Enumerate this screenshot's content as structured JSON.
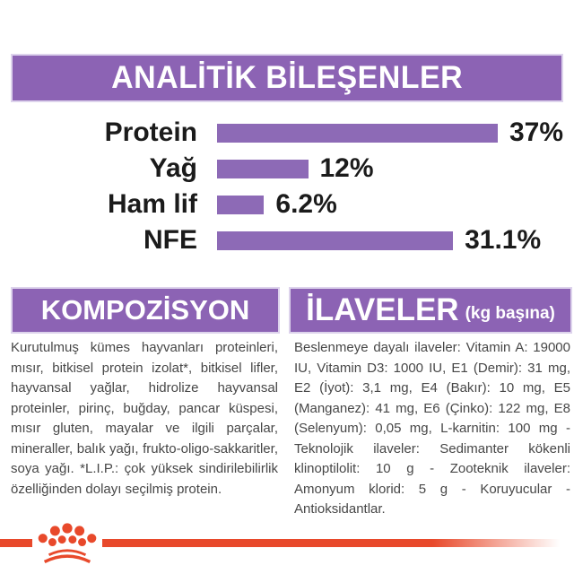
{
  "header": {
    "title": "ANALİTİK BİLEŞENLER"
  },
  "chart_data": {
    "type": "bar",
    "orientation": "horizontal",
    "title": "ANALİTİK BİLEŞENLER",
    "categories": [
      "Protein",
      "Yağ",
      "Ham lif",
      "NFE"
    ],
    "values": [
      37,
      12,
      6.2,
      31.1
    ],
    "value_labels": [
      "37%",
      "12%",
      "6.2%",
      "31.1%"
    ],
    "max_value": 37,
    "xlabel": "",
    "ylabel": "",
    "grid": false,
    "legend": false
  },
  "sections": {
    "kompozisyon": {
      "title": "KOMPOZİSYON",
      "body": "Kurutulmuş kümes hayvanları proteinleri, mısır, bitkisel protein izolat*, bitkisel lifler, hayvansal yağlar, hidrolize hayvansal proteinler, pirinç, buğday, pancar küspesi, mısır gluten, mayalar ve ilgili parçalar, mineraller, balık yağı, frukto-oligo-sakkaritler, soya yağı. *L.I.P.: çok yüksek sindirilebilirlik özelliğinden dolayı seçilmiş protein."
    },
    "ilaveler": {
      "title": "İLAVELER",
      "subtitle": "(kg başına)",
      "body": "Beslenmeye dayalı ilaveler: Vitamin A: 19000 IU, Vitamin D3: 1000 IU, E1 (Demir): 31 mg, E2 (İyot): 3,1 mg, E4 (Bakır): 10 mg, E5 (Manganez): 41 mg, E6 (Çinko): 122 mg, E8 (Selenyum): 0,05 mg, L-karnitin: 100 mg - Teknolojik ilaveler: Sedimanter kökenli klinoptilolit: 10 g - Zooteknik ilaveler: Amonyum klorid: 5 g - Koruyucular - Antioksidantlar."
    }
  },
  "footer": {
    "logo": "royal-canin-crown-logo"
  },
  "colors": {
    "purple_band": "#8C63B4",
    "purple_bar": "#8D6AB6",
    "accent_orange": "#E8492B",
    "text_dark": "#1B1B1B",
    "body_text": "#474747"
  }
}
